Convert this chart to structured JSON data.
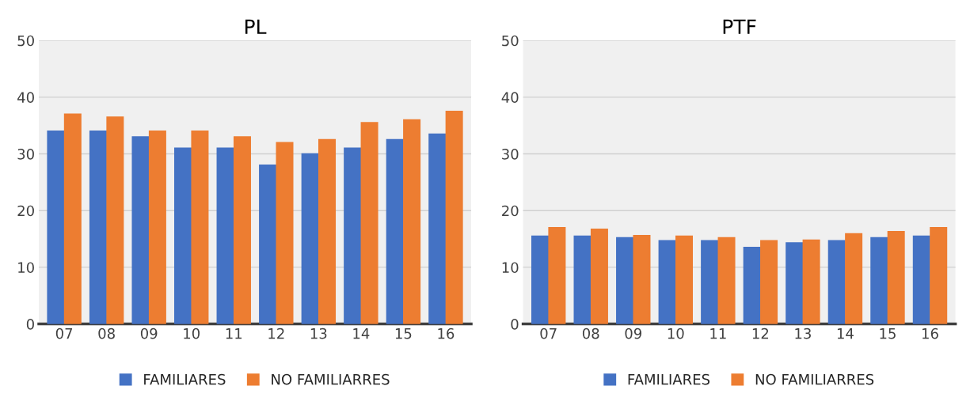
{
  "chart_data": [
    {
      "type": "bar",
      "title": "PL",
      "categories": [
        "07",
        "08",
        "09",
        "10",
        "11",
        "12",
        "13",
        "14",
        "15",
        "16"
      ],
      "series": [
        {
          "name": "FAMILIARES",
          "color": "#4472c4",
          "values": [
            34,
            34,
            33,
            31,
            31,
            28,
            30,
            31,
            32.5,
            33.5
          ]
        },
        {
          "name": "NO FAMILIARRES",
          "color": "#ed7d31",
          "values": [
            37,
            36.5,
            34,
            34,
            33,
            32,
            32.5,
            35.5,
            36,
            37.5
          ]
        }
      ],
      "ylim": [
        0,
        50
      ],
      "yticks": [
        0,
        10,
        20,
        30,
        40,
        50
      ],
      "grid": "y",
      "legend": "bottom"
    },
    {
      "type": "bar",
      "title": "PTF",
      "categories": [
        "07",
        "08",
        "09",
        "10",
        "11",
        "12",
        "13",
        "14",
        "15",
        "16"
      ],
      "series": [
        {
          "name": "FAMILIARES",
          "color": "#4472c4",
          "values": [
            15.5,
            15.5,
            15.2,
            14.7,
            14.7,
            13.5,
            14.3,
            14.7,
            15.2,
            15.5
          ]
        },
        {
          "name": "NO FAMILIARRES",
          "color": "#ed7d31",
          "values": [
            17,
            16.7,
            15.6,
            15.5,
            15.2,
            14.7,
            14.8,
            15.9,
            16.3,
            17
          ]
        }
      ],
      "ylim": [
        0,
        50
      ],
      "yticks": [
        0,
        10,
        20,
        30,
        40,
        50
      ],
      "grid": "y",
      "legend": "bottom"
    }
  ]
}
